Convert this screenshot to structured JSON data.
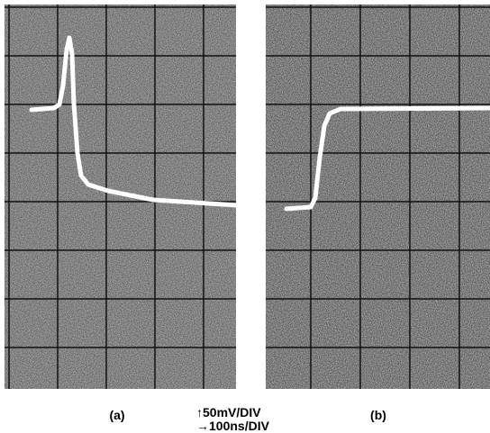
{
  "panels": [
    {
      "label": "(a)"
    },
    {
      "label": "(b)"
    }
  ],
  "scale": {
    "vertical": "↑50mV/DIV",
    "horizontal": "→100ns/DIV"
  }
}
